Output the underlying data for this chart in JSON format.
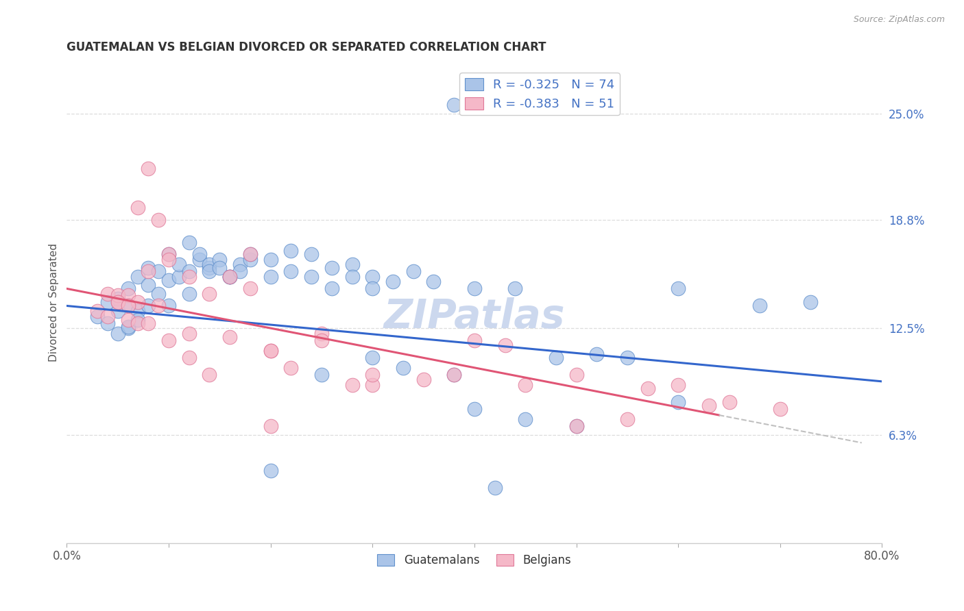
{
  "title": "GUATEMALAN VS BELGIAN DIVORCED OR SEPARATED CORRELATION CHART",
  "source": "Source: ZipAtlas.com",
  "ylabel": "Divorced or Separated",
  "xlim": [
    0.0,
    0.8
  ],
  "ylim": [
    0.0,
    0.28
  ],
  "ytick_labels_right": [
    "6.3%",
    "12.5%",
    "18.8%",
    "25.0%"
  ],
  "ytick_values_right": [
    0.063,
    0.125,
    0.188,
    0.25
  ],
  "legend_blue_r": "-0.325",
  "legend_blue_n": "74",
  "legend_pink_r": "-0.383",
  "legend_pink_n": "51",
  "blue_fill": "#aac4e8",
  "pink_fill": "#f5b8c8",
  "blue_edge": "#6090cc",
  "pink_edge": "#e07898",
  "blue_line": "#3366cc",
  "pink_line": "#e05575",
  "dashed_color": "#c0c0c0",
  "watermark_color": "#ccd8ee",
  "background_color": "#ffffff",
  "grid_color": "#dddddd",
  "blue_line_intercept": 0.138,
  "blue_line_slope": -0.055,
  "pink_line_intercept": 0.148,
  "pink_line_slope": -0.115,
  "blue_scatter_x": [
    0.38,
    0.03,
    0.04,
    0.05,
    0.06,
    0.04,
    0.05,
    0.06,
    0.07,
    0.05,
    0.06,
    0.07,
    0.08,
    0.06,
    0.07,
    0.08,
    0.09,
    0.1,
    0.08,
    0.09,
    0.1,
    0.11,
    0.12,
    0.1,
    0.11,
    0.12,
    0.13,
    0.14,
    0.12,
    0.13,
    0.14,
    0.15,
    0.16,
    0.14,
    0.15,
    0.16,
    0.17,
    0.18,
    0.16,
    0.17,
    0.18,
    0.2,
    0.22,
    0.24,
    0.26,
    0.28,
    0.3,
    0.2,
    0.22,
    0.24,
    0.26,
    0.28,
    0.3,
    0.32,
    0.34,
    0.36,
    0.4,
    0.44,
    0.48,
    0.52,
    0.55,
    0.6,
    0.68,
    0.73,
    0.45,
    0.5,
    0.6,
    0.4,
    0.33,
    0.38,
    0.25,
    0.3,
    0.2,
    0.42
  ],
  "blue_scatter_y": [
    0.255,
    0.132,
    0.128,
    0.135,
    0.125,
    0.14,
    0.142,
    0.138,
    0.135,
    0.122,
    0.126,
    0.13,
    0.138,
    0.148,
    0.155,
    0.15,
    0.145,
    0.138,
    0.16,
    0.158,
    0.153,
    0.155,
    0.145,
    0.168,
    0.162,
    0.158,
    0.165,
    0.16,
    0.175,
    0.168,
    0.162,
    0.165,
    0.155,
    0.158,
    0.16,
    0.155,
    0.162,
    0.165,
    0.155,
    0.158,
    0.168,
    0.165,
    0.17,
    0.168,
    0.16,
    0.162,
    0.155,
    0.155,
    0.158,
    0.155,
    0.148,
    0.155,
    0.148,
    0.152,
    0.158,
    0.152,
    0.148,
    0.148,
    0.108,
    0.11,
    0.108,
    0.148,
    0.138,
    0.14,
    0.072,
    0.068,
    0.082,
    0.078,
    0.102,
    0.098,
    0.098,
    0.108,
    0.042,
    0.032
  ],
  "pink_scatter_x": [
    0.03,
    0.04,
    0.05,
    0.06,
    0.04,
    0.05,
    0.06,
    0.07,
    0.05,
    0.06,
    0.07,
    0.08,
    0.09,
    0.07,
    0.08,
    0.09,
    0.1,
    0.08,
    0.1,
    0.12,
    0.1,
    0.12,
    0.14,
    0.12,
    0.14,
    0.16,
    0.18,
    0.2,
    0.16,
    0.18,
    0.2,
    0.22,
    0.25,
    0.28,
    0.3,
    0.25,
    0.3,
    0.35,
    0.4,
    0.45,
    0.5,
    0.55,
    0.6,
    0.65,
    0.7,
    0.38,
    0.43,
    0.5,
    0.57,
    0.63,
    0.2
  ],
  "pink_scatter_y": [
    0.135,
    0.132,
    0.14,
    0.13,
    0.145,
    0.144,
    0.144,
    0.14,
    0.14,
    0.138,
    0.128,
    0.128,
    0.138,
    0.195,
    0.218,
    0.188,
    0.168,
    0.158,
    0.165,
    0.155,
    0.118,
    0.122,
    0.145,
    0.108,
    0.098,
    0.12,
    0.168,
    0.112,
    0.155,
    0.148,
    0.112,
    0.102,
    0.122,
    0.092,
    0.092,
    0.118,
    0.098,
    0.095,
    0.118,
    0.092,
    0.068,
    0.072,
    0.092,
    0.082,
    0.078,
    0.098,
    0.115,
    0.098,
    0.09,
    0.08,
    0.068
  ]
}
